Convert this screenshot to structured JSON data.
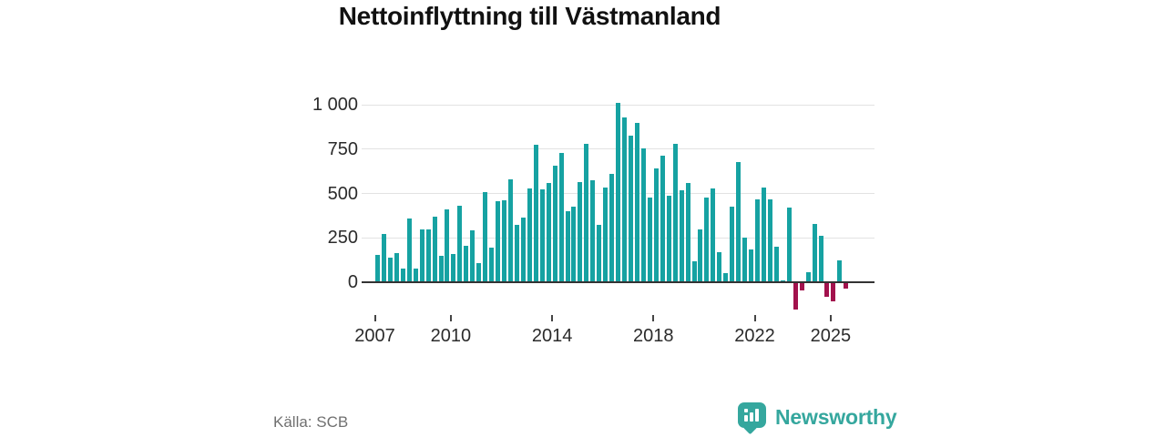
{
  "page": {
    "title": "Nettoinflyttning till Västmanland"
  },
  "source": {
    "label": "Källa: SCB"
  },
  "logo": {
    "text": "Newsworthy",
    "icon": "newsworthy-pin-barchart-icon",
    "color": "#35a79e"
  },
  "chart_data": {
    "type": "bar",
    "title": "Nettoinflyttning till Västmanland",
    "xlabel": "",
    "ylabel": "",
    "x_unit": "quarter",
    "grid": "horizontal",
    "ylim": [
      -170,
      1050
    ],
    "y_ticks": {
      "values": [
        0,
        250,
        500,
        750,
        1000
      ],
      "labels": [
        "0",
        "250",
        "500",
        "750",
        "1 000"
      ]
    },
    "x_ticks": [
      {
        "label": "2007",
        "quarter_index": 0
      },
      {
        "label": "2010",
        "quarter_index": 12
      },
      {
        "label": "2014",
        "quarter_index": 28
      },
      {
        "label": "2018",
        "quarter_index": 44
      },
      {
        "label": "2022",
        "quarter_index": 60
      },
      {
        "label": "2025",
        "quarter_index": 72
      }
    ],
    "colors": {
      "positive": "#16a2a2",
      "negative": "#a2124d",
      "gridline": "#e2e2e2",
      "zero_line": "#333333"
    },
    "quarters": [
      "2007Q1",
      "2007Q2",
      "2007Q3",
      "2007Q4",
      "2008Q1",
      "2008Q2",
      "2008Q3",
      "2008Q4",
      "2009Q1",
      "2009Q2",
      "2009Q3",
      "2009Q4",
      "2010Q1",
      "2010Q2",
      "2010Q3",
      "2010Q4",
      "2011Q1",
      "2011Q2",
      "2011Q3",
      "2011Q4",
      "2012Q1",
      "2012Q2",
      "2012Q3",
      "2012Q4",
      "2013Q1",
      "2013Q2",
      "2013Q3",
      "2013Q4",
      "2014Q1",
      "2014Q2",
      "2014Q3",
      "2014Q4",
      "2015Q1",
      "2015Q2",
      "2015Q3",
      "2015Q4",
      "2016Q1",
      "2016Q2",
      "2016Q3",
      "2016Q4",
      "2017Q1",
      "2017Q2",
      "2017Q3",
      "2017Q4",
      "2018Q1",
      "2018Q2",
      "2018Q3",
      "2018Q4",
      "2019Q1",
      "2019Q2",
      "2019Q3",
      "2019Q4",
      "2020Q1",
      "2020Q2",
      "2020Q3",
      "2020Q4",
      "2021Q1",
      "2021Q2",
      "2021Q3",
      "2021Q4",
      "2022Q1",
      "2022Q2",
      "2022Q3",
      "2022Q4",
      "2023Q1",
      "2023Q2",
      "2023Q3",
      "2023Q4",
      "2024Q1",
      "2024Q2",
      "2024Q3",
      "2024Q4",
      "2025Q1",
      "2025Q2",
      "2025Q3"
    ],
    "values": [
      155,
      270,
      140,
      165,
      78,
      360,
      78,
      295,
      295,
      370,
      150,
      410,
      160,
      430,
      205,
      290,
      110,
      510,
      195,
      455,
      460,
      580,
      325,
      365,
      530,
      775,
      525,
      560,
      655,
      730,
      400,
      425,
      565,
      780,
      575,
      325,
      535,
      610,
      1010,
      930,
      825,
      900,
      755,
      475,
      640,
      715,
      485,
      780,
      520,
      560,
      120,
      300,
      475,
      530,
      170,
      50,
      425,
      675,
      250,
      185,
      465,
      535,
      465,
      200,
      10,
      420,
      -150,
      -40,
      55,
      330,
      260,
      -75,
      -100,
      125,
      -30
    ],
    "source": "Källa: SCB"
  }
}
